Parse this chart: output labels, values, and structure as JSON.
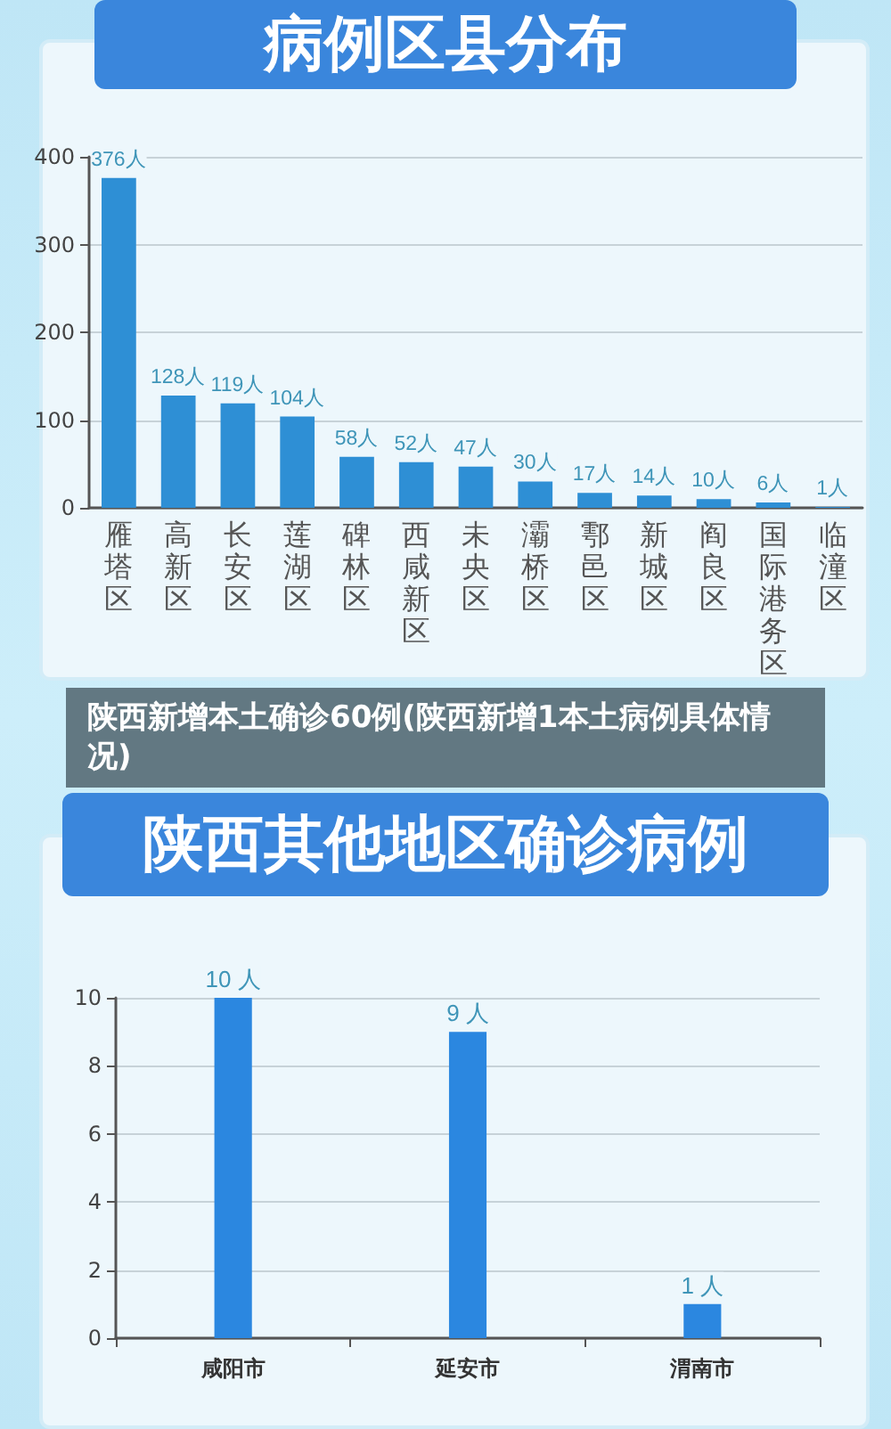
{
  "chart_data": [
    {
      "type": "bar",
      "title": "病例区县分布",
      "categories": [
        "雁塔区",
        "高新区",
        "长安区",
        "莲湖区",
        "碑林区",
        "西咸新区",
        "未央区",
        "灞桥区",
        "鄠邑区",
        "新城区",
        "阎良区",
        "国际港务区",
        "临潼区"
      ],
      "values": [
        376,
        128,
        119,
        104,
        58,
        52,
        47,
        30,
        17,
        14,
        10,
        6,
        1
      ],
      "value_labels": [
        "376人",
        "128人",
        "119人",
        "104人",
        "58人",
        "52人",
        "47人",
        "30人",
        "17人",
        "14人",
        "10人",
        "6人",
        "1人"
      ],
      "color": "#2e8fd5",
      "ylim": [
        0,
        400
      ],
      "yticks": [
        0,
        100,
        200,
        300,
        400
      ],
      "grid": "y",
      "annotations": [
        "陕西新增本土确诊60例(陕西新增1本土病例具体情况)"
      ]
    },
    {
      "type": "bar",
      "title": "陕西其他地区确诊病例",
      "categories": [
        "咸阳市",
        "延安市",
        "渭南市"
      ],
      "values": [
        10,
        9,
        1
      ],
      "value_labels": [
        "10 人",
        "9 人",
        "1 人"
      ],
      "color": "#2b87e0",
      "ylim": [
        0,
        10
      ],
      "yticks": [
        0,
        2,
        4,
        6,
        8,
        10
      ],
      "grid": "y"
    }
  ]
}
